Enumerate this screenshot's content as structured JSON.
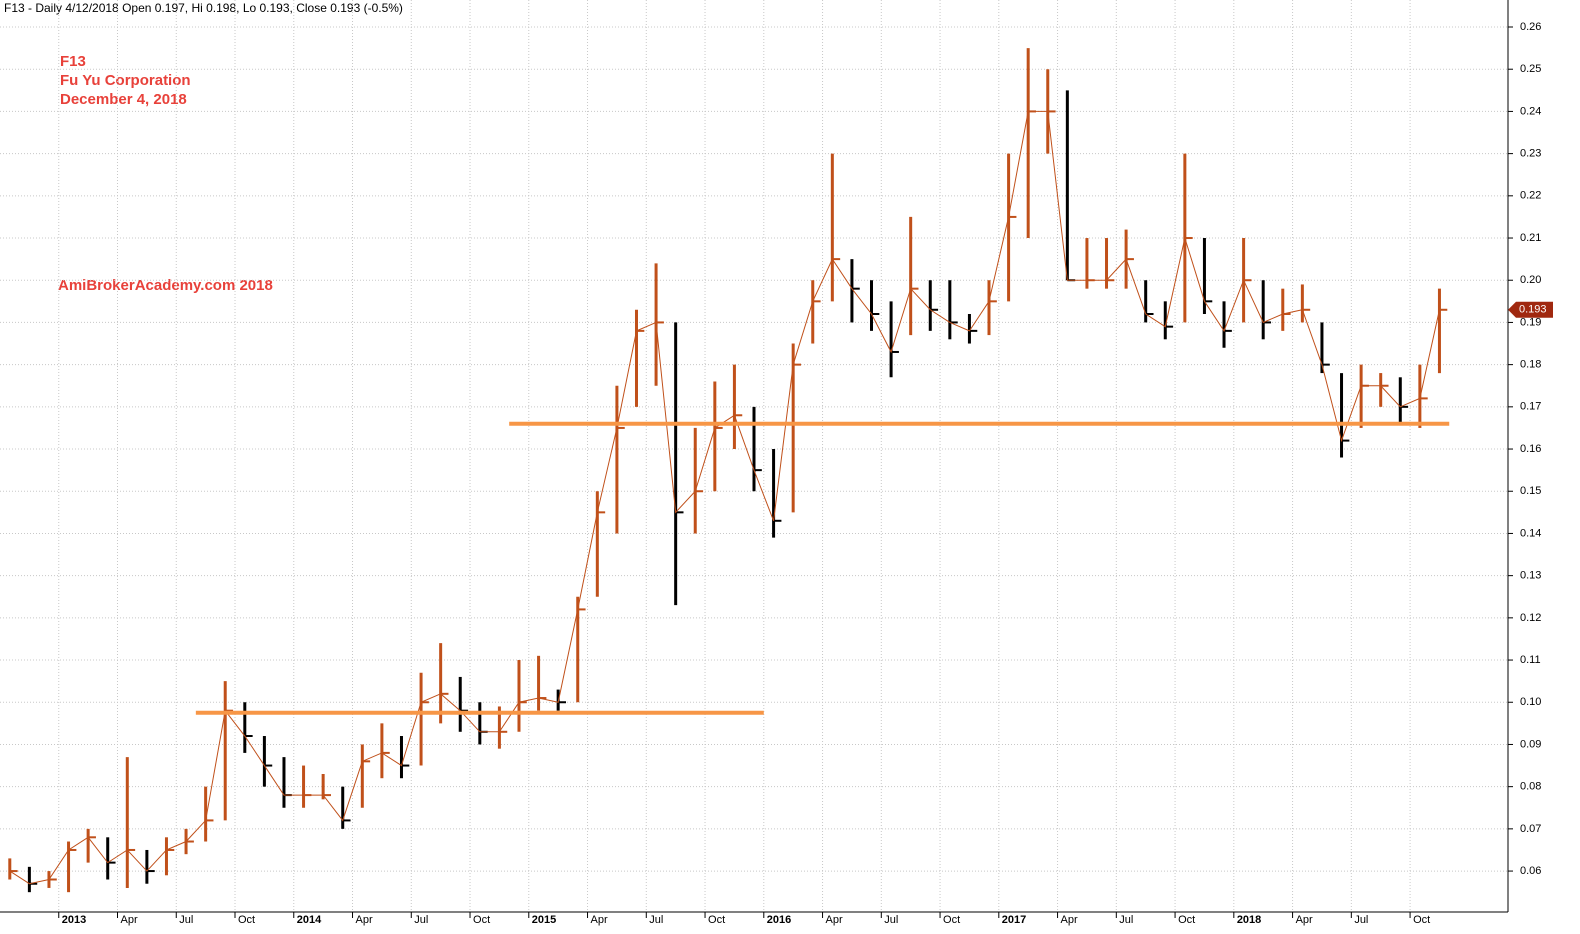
{
  "chart_data": {
    "type": "ohlc",
    "header": "F13 - Daily 4/12/2018 Open 0.197, Hi 0.198, Lo 0.193, Close 0.193 (-0.5%)",
    "annotations": [
      "F13",
      "Fu Yu Corporation",
      "December 4, 2018",
      "AmiBrokerAcademy.com  2018"
    ],
    "x": [
      "2012-10",
      "2012-11",
      "2012-12",
      "2013-01",
      "2013-02",
      "2013-03",
      "2013-04",
      "2013-05",
      "2013-06",
      "2013-07",
      "2013-08",
      "2013-09",
      "2013-10",
      "2013-11",
      "2013-12",
      "2014-01",
      "2014-02",
      "2014-03",
      "2014-04",
      "2014-05",
      "2014-06",
      "2014-07",
      "2014-08",
      "2014-09",
      "2014-10",
      "2014-11",
      "2014-12",
      "2015-01",
      "2015-02",
      "2015-03",
      "2015-04",
      "2015-05",
      "2015-06",
      "2015-07",
      "2015-08",
      "2015-09",
      "2015-10",
      "2015-11",
      "2015-12",
      "2016-01",
      "2016-02",
      "2016-03",
      "2016-04",
      "2016-05",
      "2016-06",
      "2016-07",
      "2016-08",
      "2016-09",
      "2016-10",
      "2016-11",
      "2016-12",
      "2017-01",
      "2017-02",
      "2017-03",
      "2017-04",
      "2017-05",
      "2017-06",
      "2017-07",
      "2017-08",
      "2017-09",
      "2017-10",
      "2017-11",
      "2017-12",
      "2018-01",
      "2018-02",
      "2018-03",
      "2018-04",
      "2018-05",
      "2018-06",
      "2018-07",
      "2018-08",
      "2018-09",
      "2018-10",
      "2018-11"
    ],
    "low": [
      0.058,
      0.055,
      0.056,
      0.055,
      0.062,
      0.058,
      0.056,
      0.057,
      0.059,
      0.064,
      0.067,
      0.072,
      0.088,
      0.08,
      0.075,
      0.075,
      0.077,
      0.07,
      0.075,
      0.082,
      0.082,
      0.085,
      0.095,
      0.093,
      0.09,
      0.089,
      0.093,
      0.098,
      0.098,
      0.1,
      0.125,
      0.14,
      0.17,
      0.175,
      0.123,
      0.14,
      0.15,
      0.16,
      0.15,
      0.139,
      0.145,
      0.185,
      0.195,
      0.19,
      0.188,
      0.177,
      0.187,
      0.188,
      0.186,
      0.185,
      0.187,
      0.195,
      0.21,
      0.23,
      0.2,
      0.198,
      0.198,
      0.198,
      0.19,
      0.186,
      0.19,
      0.192,
      0.184,
      0.19,
      0.186,
      0.188,
      0.19,
      0.178,
      0.158,
      0.165,
      0.17,
      0.166,
      0.165,
      0.178
    ],
    "high": [
      0.063,
      0.061,
      0.06,
      0.067,
      0.07,
      0.068,
      0.087,
      0.065,
      0.068,
      0.07,
      0.08,
      0.105,
      0.1,
      0.092,
      0.087,
      0.085,
      0.083,
      0.08,
      0.09,
      0.095,
      0.092,
      0.107,
      0.114,
      0.106,
      0.1,
      0.099,
      0.11,
      0.111,
      0.103,
      0.125,
      0.15,
      0.175,
      0.193,
      0.204,
      0.19,
      0.165,
      0.176,
      0.18,
      0.17,
      0.16,
      0.185,
      0.2,
      0.23,
      0.205,
      0.2,
      0.195,
      0.215,
      0.2,
      0.2,
      0.192,
      0.2,
      0.23,
      0.255,
      0.25,
      0.245,
      0.21,
      0.21,
      0.212,
      0.2,
      0.195,
      0.23,
      0.21,
      0.195,
      0.21,
      0.2,
      0.198,
      0.199,
      0.19,
      0.178,
      0.18,
      0.178,
      0.177,
      0.18,
      0.198
    ],
    "close": [
      0.06,
      0.057,
      0.058,
      0.065,
      0.068,
      0.062,
      0.065,
      0.06,
      0.065,
      0.067,
      0.072,
      0.098,
      0.092,
      0.085,
      0.078,
      0.078,
      0.078,
      0.072,
      0.086,
      0.088,
      0.085,
      0.1,
      0.102,
      0.098,
      0.093,
      0.093,
      0.1,
      0.101,
      0.1,
      0.122,
      0.145,
      0.165,
      0.188,
      0.19,
      0.145,
      0.15,
      0.165,
      0.168,
      0.155,
      0.143,
      0.18,
      0.195,
      0.205,
      0.198,
      0.192,
      0.183,
      0.198,
      0.193,
      0.19,
      0.188,
      0.195,
      0.215,
      0.24,
      0.24,
      0.2,
      0.2,
      0.2,
      0.205,
      0.192,
      0.189,
      0.21,
      0.195,
      0.188,
      0.2,
      0.19,
      0.192,
      0.193,
      0.18,
      0.162,
      0.175,
      0.175,
      0.17,
      0.172,
      0.193
    ],
    "up_color": "#c0501a",
    "down_color": "#000000",
    "levels": [
      {
        "value": 0.0975,
        "from": "2013-08",
        "to": "2016-01"
      },
      {
        "value": 0.166,
        "from": "2014-12",
        "to": "2018-12"
      }
    ],
    "level_color": "#f79646",
    "last_price": {
      "value": 0.193,
      "label": "0.193"
    },
    "last_color": "#a0280f",
    "xlim": [
      "2012-10",
      "2019-03"
    ],
    "xticks": [
      {
        "value": "2013-01",
        "label": "2013"
      },
      {
        "value": "2013-04",
        "label": "Apr"
      },
      {
        "value": "2013-07",
        "label": "Jul"
      },
      {
        "value": "2013-10",
        "label": "Oct"
      },
      {
        "value": "2014-01",
        "label": "2014"
      },
      {
        "value": "2014-04",
        "label": "Apr"
      },
      {
        "value": "2014-07",
        "label": "Jul"
      },
      {
        "value": "2014-10",
        "label": "Oct"
      },
      {
        "value": "2015-01",
        "label": "2015"
      },
      {
        "value": "2015-04",
        "label": "Apr"
      },
      {
        "value": "2015-07",
        "label": "Jul"
      },
      {
        "value": "2015-10",
        "label": "Oct"
      },
      {
        "value": "2016-01",
        "label": "2016"
      },
      {
        "value": "2016-04",
        "label": "Apr"
      },
      {
        "value": "2016-07",
        "label": "Jul"
      },
      {
        "value": "2016-10",
        "label": "Oct"
      },
      {
        "value": "2017-01",
        "label": "2017"
      },
      {
        "value": "2017-04",
        "label": "Apr"
      },
      {
        "value": "2017-07",
        "label": "Jul"
      },
      {
        "value": "2017-10",
        "label": "Oct"
      },
      {
        "value": "2018-01",
        "label": "2018"
      },
      {
        "value": "2018-04",
        "label": "Apr"
      },
      {
        "value": "2018-07",
        "label": "Jul"
      },
      {
        "value": "2018-10",
        "label": "Oct"
      }
    ],
    "ylim": [
      0.0503,
      0.2664
    ],
    "yticks": [
      0.06,
      0.07,
      0.08,
      0.09,
      {
        "value": 0.1,
        "label": "0.10"
      },
      0.11,
      0.12,
      0.13,
      0.14,
      0.15,
      0.16,
      0.17,
      0.18,
      0.19,
      {
        "value": 0.2,
        "label": "0.20"
      },
      0.21,
      0.22,
      0.23,
      0.24,
      0.25,
      0.26
    ],
    "grid": true
  }
}
